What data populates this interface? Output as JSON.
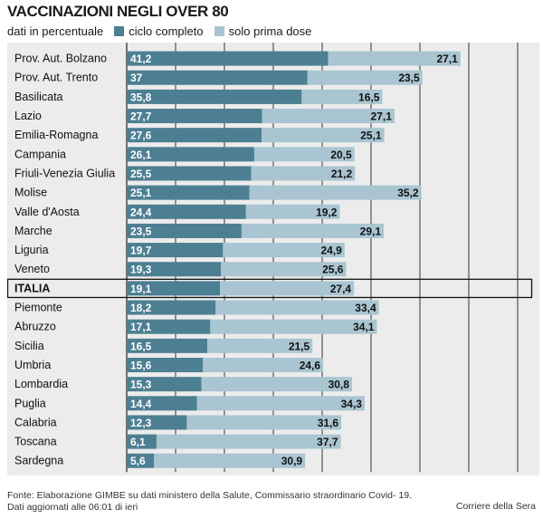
{
  "title": "VACCINAZIONI NEGLI OVER 80",
  "subtitle": "dati in percentuale",
  "colors": {
    "completo": "#4d7f92",
    "prima": "#a9c5d1",
    "grid": "#222222",
    "background": "#ececec",
    "highlight_border": "#111111"
  },
  "chart_data": {
    "type": "bar",
    "orientation": "horizontal",
    "stacked": true,
    "title": "VACCINAZIONI NEGLI OVER 80",
    "subtitle": "dati in percentuale",
    "categories": [
      "Prov. Aut. Bolzano",
      "Prov. Aut. Trento",
      "Basilicata",
      "Lazio",
      "Emilia-Romagna",
      "Campania",
      "Friuli-Venezia Giulia",
      "Molise",
      "Valle d'Aosta",
      "Marche",
      "Liguria",
      "Veneto",
      "ITALIA",
      "Piemonte",
      "Abruzzo",
      "Sicilia",
      "Umbria",
      "Lombardia",
      "Puglia",
      "Calabria",
      "Toscana",
      "Sardegna"
    ],
    "series": [
      {
        "name": "ciclo completo",
        "values": [
          41.2,
          37,
          35.8,
          27.7,
          27.6,
          26.1,
          25.5,
          25.1,
          24.4,
          23.5,
          19.7,
          19.3,
          19.1,
          18.2,
          17.1,
          16.5,
          15.6,
          15.3,
          14.4,
          12.3,
          6.1,
          5.6
        ],
        "labels": [
          "41,2",
          "37",
          "35,8",
          "27,7",
          "27,6",
          "26,1",
          "25,5",
          "25,1",
          "24,4",
          "23,5",
          "19,7",
          "19,3",
          "19,1",
          "18,2",
          "17,1",
          "16,5",
          "15,6",
          "15,3",
          "14,4",
          "12,3",
          "6,1",
          "5,6"
        ]
      },
      {
        "name": "solo prima dose",
        "values": [
          27.1,
          23.5,
          16.5,
          27.1,
          25.1,
          20.5,
          21.2,
          35.2,
          19.2,
          29.1,
          24.9,
          25.6,
          27.4,
          33.4,
          34.1,
          21.5,
          24.6,
          30.8,
          34.3,
          31.6,
          37.7,
          30.9
        ],
        "labels": [
          "27,1",
          "23,5",
          "16,5",
          "27,1",
          "25,1",
          "20,5",
          "21,2",
          "35,2",
          "19,2",
          "29,1",
          "24,9",
          "25,6",
          "27,4",
          "33,4",
          "34,1",
          "21,5",
          "24,6",
          "30,8",
          "34,3",
          "31,6",
          "37,7",
          "30,9"
        ]
      }
    ],
    "highlight": "ITALIA",
    "xlim": [
      0,
      80
    ],
    "xticks": [
      0,
      10,
      20,
      30,
      40,
      50,
      60,
      70,
      80
    ],
    "grid": true,
    "legend": "top"
  },
  "source_line1": "Fonte: Elaborazione GIMBE su dati ministero della Salute, Commissario straordinario Covid- 19.",
  "source_line2": "Dati aggiornati alle 06:01 di ieri",
  "credit": "Corriere della Sera"
}
